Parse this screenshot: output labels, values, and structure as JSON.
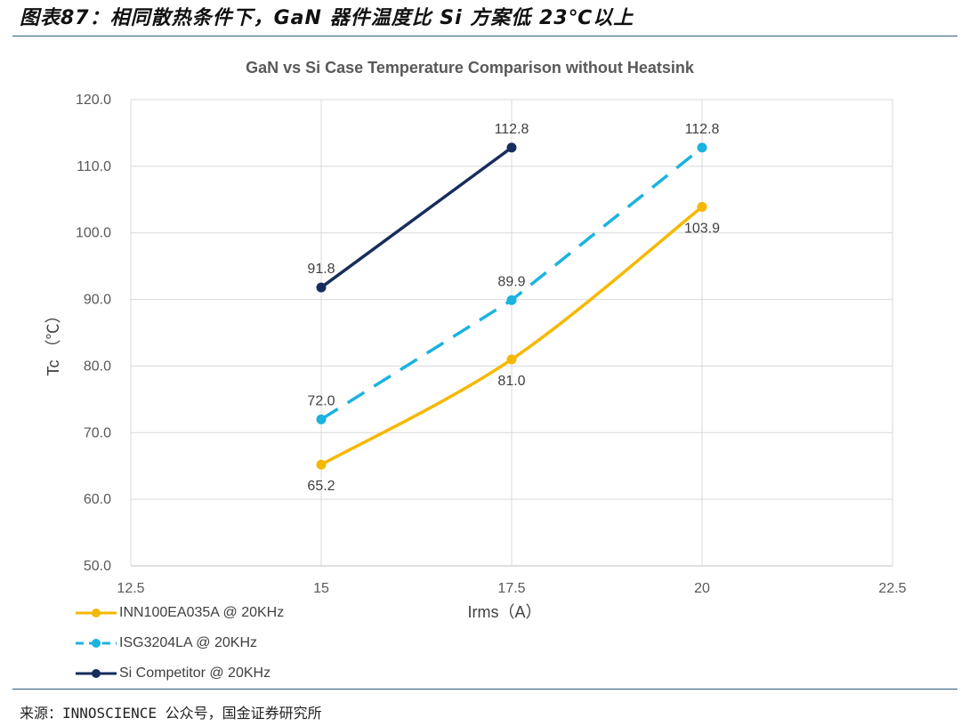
{
  "figure": {
    "title": "图表87：相同散热条件下，GaN 器件温度比 Si 方案低 23℃以上",
    "source": "来源：INNOSCIENCE 公众号，国金证券研究所"
  },
  "chart_data": {
    "type": "line",
    "title": "GaN vs Si Case Temperature Comparison without Heatsink",
    "xlabel": "Irms（A）",
    "ylabel": "Tc （℃）",
    "xlim": [
      12.5,
      22.5
    ],
    "ylim": [
      50,
      120
    ],
    "x_ticks": [
      "12.5",
      "15",
      "17.5",
      "20",
      "22.5"
    ],
    "y_ticks": [
      "50.0",
      "60.0",
      "70.0",
      "80.0",
      "90.0",
      "100.0",
      "110.0",
      "120.0"
    ],
    "grid": true,
    "legend_position": "bottom-left",
    "series": [
      {
        "name": "INN100EA035A @ 20KHz",
        "x": [
          15,
          17.5,
          20
        ],
        "y": [
          65.2,
          81.0,
          103.9
        ],
        "labels": [
          "65.2",
          "81.0",
          "103.9"
        ],
        "label_position": "below",
        "color": "#f5b800",
        "style": "solid-smooth"
      },
      {
        "name": "ISG3204LA @ 20KHz",
        "x": [
          15,
          17.5,
          20
        ],
        "y": [
          72.0,
          89.9,
          112.8
        ],
        "labels": [
          "72.0",
          "89.9",
          "112.8"
        ],
        "label_position": "above",
        "color": "#1bb3df",
        "style": "dashed"
      },
      {
        "name": "Si Competitor @ 20KHz",
        "x": [
          15,
          17.5
        ],
        "y": [
          91.8,
          112.8
        ],
        "labels": [
          "91.8",
          "112.8"
        ],
        "label_position": "above",
        "color": "#172d5c",
        "style": "solid"
      }
    ]
  }
}
